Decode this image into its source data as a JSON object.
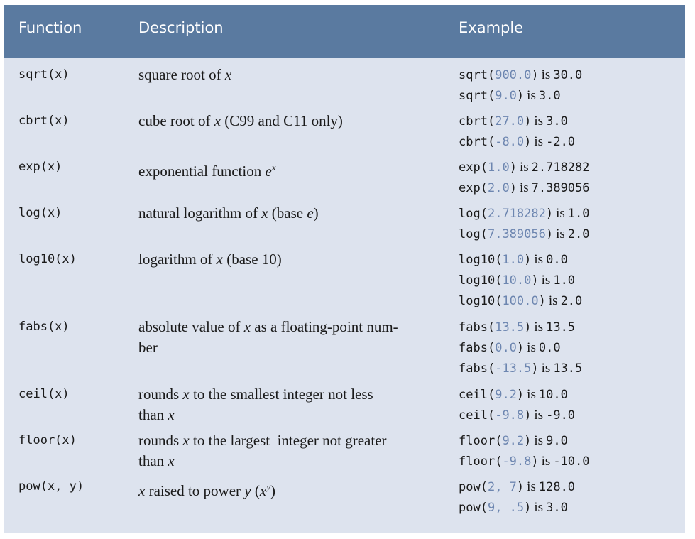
{
  "header": {
    "function": "Function",
    "description": "Description",
    "example": "Example"
  },
  "rows": [
    {
      "fn": "sqrt(x)",
      "desc_parts": [
        "square root of ",
        "x"
      ],
      "examples": [
        {
          "name": "sqrt",
          "arg": "900.0",
          "is": "is",
          "result": "30.0"
        },
        {
          "name": "sqrt",
          "arg": "9.0",
          "is": "is",
          "result": "3.0"
        }
      ]
    },
    {
      "fn": "cbrt(x)",
      "desc_parts": [
        "cube root of ",
        "x",
        " (C99 and C11 only)"
      ],
      "examples": [
        {
          "name": "cbrt",
          "arg": "27.0",
          "is": "is",
          "result": "3.0"
        },
        {
          "name": "cbrt",
          "arg": "-8.0",
          "is": "is",
          "result": "-2.0"
        }
      ]
    },
    {
      "fn": "exp(x)",
      "desc_parts": [
        "exponential function ",
        "e",
        "x"
      ],
      "examples": [
        {
          "name": "exp",
          "arg": "1.0",
          "is": "is",
          "result": "2.718282"
        },
        {
          "name": "exp",
          "arg": "2.0",
          "is": "is",
          "result": "7.389056"
        }
      ]
    },
    {
      "fn": "log(x)",
      "desc_parts": [
        "natural logarithm of ",
        "x",
        " (base ",
        "e",
        ")"
      ],
      "examples": [
        {
          "name": "log",
          "arg": "2.718282",
          "is": "is",
          "result": "1.0"
        },
        {
          "name": "log",
          "arg": "7.389056",
          "is": "is",
          "result": "2.0"
        }
      ]
    },
    {
      "fn": "log10(x)",
      "desc_parts": [
        "logarithm of ",
        "x",
        " (base 10)"
      ],
      "examples": [
        {
          "name": "log10",
          "arg": "1.0",
          "is": "is",
          "result": "0.0"
        },
        {
          "name": "log10",
          "arg": "10.0",
          "is": "is",
          "result": "1.0"
        },
        {
          "name": "log10",
          "arg": "100.0",
          "is": "is",
          "result": "2.0"
        }
      ]
    },
    {
      "fn": "fabs(x)",
      "desc_parts": [
        "absolute value of ",
        "x",
        " as a floating-point num-",
        "ber"
      ],
      "examples": [
        {
          "name": "fabs",
          "arg": "13.5",
          "is": "is",
          "result": "13.5"
        },
        {
          "name": "fabs",
          "arg": "0.0",
          "is": "is",
          "result": "0.0"
        },
        {
          "name": "fabs",
          "arg": "-13.5",
          "is": "is",
          "result": "13.5"
        }
      ]
    },
    {
      "fn": "ceil(x)",
      "desc_parts": [
        "rounds ",
        "x",
        " to the smallest integer not less",
        "than ",
        "x"
      ],
      "examples": [
        {
          "name": "ceil",
          "arg": "9.2",
          "is": "is",
          "result": "10.0"
        },
        {
          "name": "ceil",
          "arg": "-9.8",
          "is": "is",
          "result": "-9.0"
        }
      ]
    },
    {
      "fn": "floor(x)",
      "desc_parts": [
        "rounds ",
        "x",
        " to the largest  integer not greater",
        "than ",
        "x"
      ],
      "examples": [
        {
          "name": "floor",
          "arg": "9.2",
          "is": "is",
          "result": "9.0"
        },
        {
          "name": "floor",
          "arg": "-9.8",
          "is": "is",
          "result": "-10.0"
        }
      ]
    },
    {
      "fn": "pow(x, y)",
      "desc_parts": [
        "x",
        " raised to power ",
        "y",
        " (",
        "x",
        "y",
        ")"
      ],
      "examples": [
        {
          "name": "pow",
          "arg": "2, 7",
          "is": "is",
          "result": "128.0"
        },
        {
          "name": "pow",
          "arg": "9, .5",
          "is": "is",
          "result": "3.0"
        }
      ]
    }
  ],
  "colors": {
    "header_bg": "#5a7aa0",
    "body_bg": "#dde3ee",
    "arg_color": "#6d86b0"
  }
}
